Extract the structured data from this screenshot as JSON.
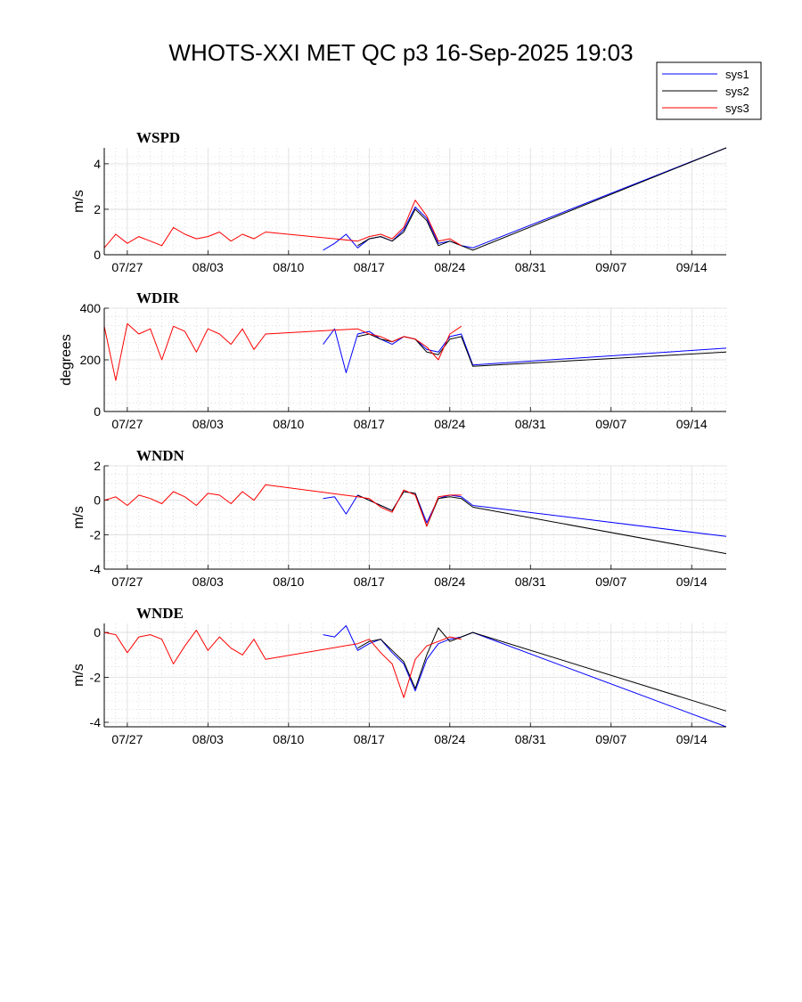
{
  "figure": {
    "title": "WHOTS-XXI MET QC p3 16-Sep-2025 19:03"
  },
  "legend": {
    "position": "top-right",
    "entries": [
      {
        "name": "sys1",
        "color": "#0000ff"
      },
      {
        "name": "sys2",
        "color": "#000000"
      },
      {
        "name": "sys3",
        "color": "#ff0000"
      }
    ]
  },
  "chart_data": [
    {
      "type": "line",
      "title": "WSPD",
      "ylabel": "m/s",
      "xlim": [
        "2025-07-25",
        "2025-09-17"
      ],
      "ylim": [
        0,
        4.7
      ],
      "yticks": [
        0,
        2,
        4
      ],
      "xticks": [
        "07/27",
        "08/03",
        "08/10",
        "08/17",
        "08/24",
        "08/31",
        "09/07",
        "09/14"
      ],
      "grid": true,
      "series": [
        {
          "name": "sys1",
          "color": "#0000ff",
          "x": [
            "08/13",
            "08/14",
            "08/15",
            "08/16",
            "08/17",
            "08/18",
            "08/19",
            "08/20",
            "08/21",
            "08/22",
            "08/23",
            "08/24",
            "08/25",
            "08/26",
            "09/17"
          ],
          "y": [
            0.2,
            0.5,
            0.9,
            0.3,
            0.7,
            0.8,
            0.6,
            1.1,
            2.1,
            1.6,
            0.5,
            0.6,
            0.4,
            0.3,
            4.7
          ]
        },
        {
          "name": "sys2",
          "color": "#000000",
          "x": [
            "08/16",
            "08/17",
            "08/18",
            "08/19",
            "08/20",
            "08/21",
            "08/22",
            "08/23",
            "08/24",
            "08/25",
            "08/26",
            "09/17"
          ],
          "y": [
            0.4,
            0.7,
            0.8,
            0.6,
            1.0,
            2.0,
            1.5,
            0.4,
            0.6,
            0.4,
            0.2,
            4.7
          ]
        },
        {
          "name": "sys3",
          "color": "#ff0000",
          "x": [
            "07/25",
            "07/26",
            "07/27",
            "07/28",
            "07/29",
            "07/30",
            "07/31",
            "08/01",
            "08/02",
            "08/03",
            "08/04",
            "08/05",
            "08/06",
            "08/07",
            "08/08",
            "08/16",
            "08/17",
            "08/18",
            "08/19",
            "08/20",
            "08/21",
            "08/22",
            "08/23",
            "08/24",
            "08/25"
          ],
          "y": [
            0.3,
            0.9,
            0.5,
            0.8,
            0.6,
            0.4,
            1.2,
            0.9,
            0.7,
            0.8,
            1.0,
            0.6,
            0.9,
            0.7,
            1.0,
            0.6,
            0.8,
            0.9,
            0.7,
            1.2,
            2.4,
            1.7,
            0.6,
            0.7,
            0.4
          ]
        }
      ]
    },
    {
      "type": "line",
      "title": "WDIR",
      "ylabel": "degrees",
      "xlim": [
        "2025-07-25",
        "2025-09-17"
      ],
      "ylim": [
        0,
        400
      ],
      "yticks": [
        0,
        200,
        400
      ],
      "xticks": [
        "07/27",
        "08/03",
        "08/10",
        "08/17",
        "08/24",
        "08/31",
        "09/07",
        "09/14"
      ],
      "grid": true,
      "series": [
        {
          "name": "sys1",
          "color": "#0000ff",
          "x": [
            "08/13",
            "08/14",
            "08/15",
            "08/16",
            "08/17",
            "08/18",
            "08/19",
            "08/20",
            "08/21",
            "08/22",
            "08/23",
            "08/24",
            "08/25",
            "08/26",
            "09/17"
          ],
          "y": [
            260,
            320,
            150,
            300,
            310,
            280,
            260,
            290,
            280,
            240,
            230,
            290,
            300,
            180,
            245
          ]
        },
        {
          "name": "sys2",
          "color": "#000000",
          "x": [
            "08/16",
            "08/17",
            "08/18",
            "08/19",
            "08/20",
            "08/21",
            "08/22",
            "08/23",
            "08/24",
            "08/25",
            "08/26",
            "09/17"
          ],
          "y": [
            290,
            300,
            280,
            270,
            290,
            280,
            230,
            220,
            280,
            290,
            175,
            230
          ]
        },
        {
          "name": "sys3",
          "color": "#ff0000",
          "x": [
            "07/25",
            "07/26",
            "07/27",
            "07/28",
            "07/29",
            "07/30",
            "07/31",
            "08/01",
            "08/02",
            "08/03",
            "08/04",
            "08/05",
            "08/06",
            "08/07",
            "08/08",
            "08/16",
            "08/17",
            "08/18",
            "08/19",
            "08/20",
            "08/21",
            "08/22",
            "08/23",
            "08/24",
            "08/25"
          ],
          "y": [
            330,
            120,
            340,
            300,
            320,
            200,
            330,
            310,
            230,
            320,
            300,
            260,
            320,
            240,
            300,
            320,
            300,
            290,
            270,
            290,
            280,
            250,
            200,
            300,
            330
          ]
        }
      ]
    },
    {
      "type": "line",
      "title": "WNDN",
      "ylabel": "m/s",
      "xlim": [
        "2025-07-25",
        "2025-09-17"
      ],
      "ylim": [
        -4,
        2
      ],
      "yticks": [
        -4,
        -2,
        0,
        2
      ],
      "xticks": [
        "07/27",
        "08/03",
        "08/10",
        "08/17",
        "08/24",
        "08/31",
        "09/07",
        "09/14"
      ],
      "grid": true,
      "series": [
        {
          "name": "sys1",
          "color": "#0000ff",
          "x": [
            "08/13",
            "08/14",
            "08/15",
            "08/16",
            "08/17",
            "08/18",
            "08/19",
            "08/20",
            "08/21",
            "08/22",
            "08/23",
            "08/24",
            "08/25",
            "08/26",
            "09/17"
          ],
          "y": [
            0.1,
            0.2,
            -0.8,
            0.3,
            0.0,
            -0.3,
            -0.6,
            0.5,
            0.4,
            -1.3,
            0.1,
            0.3,
            0.2,
            -0.3,
            -2.1
          ]
        },
        {
          "name": "sys2",
          "color": "#000000",
          "x": [
            "08/16",
            "08/17",
            "08/18",
            "08/19",
            "08/20",
            "08/21",
            "08/22",
            "08/23",
            "08/24",
            "08/25",
            "08/26",
            "09/17"
          ],
          "y": [
            0.3,
            0.0,
            -0.3,
            -0.6,
            0.5,
            0.4,
            -1.5,
            0.1,
            0.2,
            0.1,
            -0.4,
            -3.1
          ]
        },
        {
          "name": "sys3",
          "color": "#ff0000",
          "x": [
            "07/25",
            "07/26",
            "07/27",
            "07/28",
            "07/29",
            "07/30",
            "07/31",
            "08/01",
            "08/02",
            "08/03",
            "08/04",
            "08/05",
            "08/06",
            "08/07",
            "08/08",
            "08/16",
            "08/17",
            "08/18",
            "08/19",
            "08/20",
            "08/21",
            "08/22",
            "08/23",
            "08/24",
            "08/25"
          ],
          "y": [
            0.0,
            0.2,
            -0.3,
            0.3,
            0.1,
            -0.2,
            0.5,
            0.2,
            -0.3,
            0.4,
            0.3,
            -0.2,
            0.5,
            0.0,
            0.9,
            0.2,
            0.1,
            -0.4,
            -0.7,
            0.6,
            0.3,
            -1.5,
            0.2,
            0.3,
            0.3
          ]
        }
      ]
    },
    {
      "type": "line",
      "title": "WNDE",
      "ylabel": "m/s",
      "xlim": [
        "2025-07-25",
        "2025-09-17"
      ],
      "ylim": [
        -4.2,
        0.4
      ],
      "yticks": [
        -4,
        -2,
        0
      ],
      "xticks": [
        "07/27",
        "08/03",
        "08/10",
        "08/17",
        "08/24",
        "08/31",
        "09/07",
        "09/14"
      ],
      "grid": true,
      "series": [
        {
          "name": "sys1",
          "color": "#0000ff",
          "x": [
            "08/13",
            "08/14",
            "08/15",
            "08/16",
            "08/17",
            "08/18",
            "08/19",
            "08/20",
            "08/21",
            "08/22",
            "08/23",
            "08/24",
            "08/25",
            "08/26",
            "09/17"
          ],
          "y": [
            -0.1,
            -0.2,
            0.3,
            -0.8,
            -0.5,
            -0.3,
            -0.9,
            -1.4,
            -2.6,
            -1.2,
            -0.5,
            -0.3,
            -0.2,
            0.0,
            -4.2
          ]
        },
        {
          "name": "sys2",
          "color": "#000000",
          "x": [
            "08/16",
            "08/17",
            "08/18",
            "08/19",
            "08/20",
            "08/21",
            "08/22",
            "08/23",
            "08/24",
            "08/25",
            "08/26",
            "09/17"
          ],
          "y": [
            -0.7,
            -0.4,
            -0.3,
            -0.8,
            -1.3,
            -2.5,
            -1.0,
            0.2,
            -0.4,
            -0.2,
            0.0,
            -3.5
          ]
        },
        {
          "name": "sys3",
          "color": "#ff0000",
          "x": [
            "07/25",
            "07/26",
            "07/27",
            "07/28",
            "07/29",
            "07/30",
            "07/31",
            "08/01",
            "08/02",
            "08/03",
            "08/04",
            "08/05",
            "08/06",
            "08/07",
            "08/08",
            "08/16",
            "08/17",
            "08/18",
            "08/19",
            "08/20",
            "08/21",
            "08/22",
            "08/23",
            "08/24",
            "08/25"
          ],
          "y": [
            0.0,
            -0.1,
            -0.9,
            -0.2,
            -0.1,
            -0.3,
            -1.4,
            -0.6,
            0.1,
            -0.8,
            -0.2,
            -0.7,
            -1.0,
            -0.3,
            -1.2,
            -0.5,
            -0.3,
            -0.9,
            -1.4,
            -2.9,
            -1.2,
            -0.6,
            -0.4,
            -0.2,
            -0.3
          ]
        }
      ]
    }
  ]
}
